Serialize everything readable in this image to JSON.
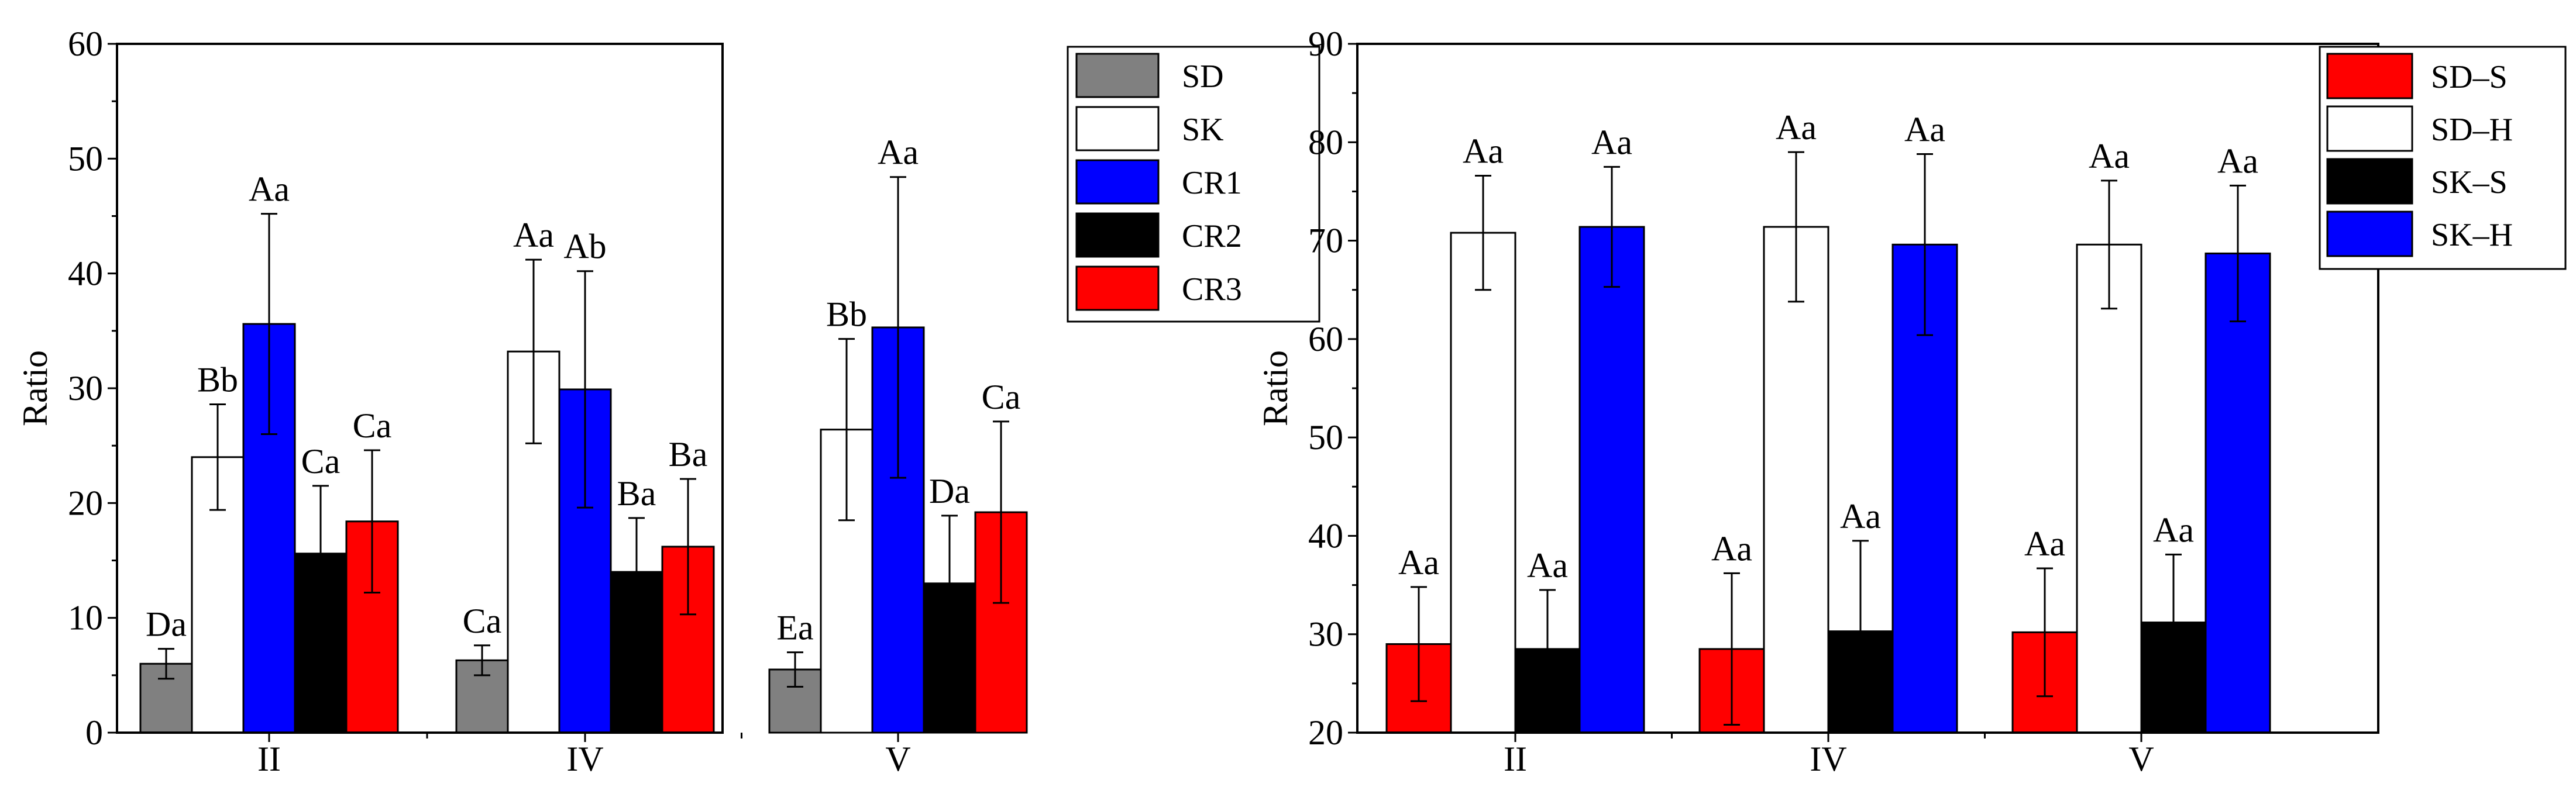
{
  "colors": {
    "SD": "#808080",
    "SK": "#ffffff",
    "CR1": "#0000ff",
    "CR2": "#000000",
    "CR3": "#ff0000",
    "SD–S": "#ff0000",
    "SD–H": "#ffffff",
    "SK–S": "#000000",
    "SK–H": "#0000ff"
  },
  "chart_data": [
    {
      "type": "bar",
      "title": "",
      "xlabel": "",
      "ylabel": "Ratio",
      "ylim": [
        0,
        60
      ],
      "yticks": [
        0,
        10,
        20,
        30,
        40,
        50,
        60
      ],
      "categories": [
        "II",
        "IV",
        "V"
      ],
      "legend_position": "outside-right",
      "series": [
        {
          "name": "SD",
          "values": [
            6.0,
            6.3,
            5.5
          ],
          "errors": [
            1.3,
            1.3,
            1.5
          ],
          "labels": [
            "Da",
            "Ca",
            "Ea"
          ]
        },
        {
          "name": "SK",
          "values": [
            24.0,
            33.2,
            26.4
          ],
          "errors": [
            4.6,
            8.0,
            7.9
          ],
          "labels": [
            "Bb",
            "Aa",
            "Bb"
          ]
        },
        {
          "name": "CR1",
          "values": [
            35.6,
            29.9,
            35.3
          ],
          "errors": [
            9.6,
            10.3,
            13.1
          ],
          "labels": [
            "Aa",
            "Ab",
            "Aa"
          ]
        },
        {
          "name": "CR2",
          "values": [
            15.6,
            14.0,
            13.0
          ],
          "errors": [
            5.9,
            4.7,
            5.9
          ],
          "labels": [
            "Ca",
            "Ba",
            "Da"
          ]
        },
        {
          "name": "CR3",
          "values": [
            18.4,
            16.2,
            19.2
          ],
          "errors": [
            6.2,
            5.9,
            7.9
          ],
          "labels": [
            "Ca",
            "Ba",
            "Ca"
          ]
        }
      ]
    },
    {
      "type": "bar",
      "title": "",
      "xlabel": "",
      "ylabel": "Ratio",
      "ylim": [
        20,
        90
      ],
      "yticks": [
        20,
        30,
        40,
        50,
        60,
        70,
        80,
        90
      ],
      "categories": [
        "II",
        "IV",
        "V"
      ],
      "legend_position": "top-right",
      "series": [
        {
          "name": "SD–S",
          "values": [
            29.0,
            28.5,
            30.2
          ],
          "errors": [
            5.8,
            7.7,
            6.5
          ],
          "labels": [
            "Aa",
            "Aa",
            "Aa"
          ]
        },
        {
          "name": "SD–H",
          "values": [
            70.8,
            71.4,
            69.6
          ],
          "errors": [
            5.8,
            7.6,
            6.5
          ],
          "labels": [
            "Aa",
            "Aa",
            "Aa"
          ]
        },
        {
          "name": "SK–S",
          "values": [
            28.5,
            30.3,
            31.2
          ],
          "errors": [
            6.0,
            9.2,
            6.9
          ],
          "labels": [
            "Aa",
            "Aa",
            "Aa"
          ]
        },
        {
          "name": "SK–H",
          "values": [
            71.4,
            69.6,
            68.7
          ],
          "errors": [
            6.1,
            9.2,
            6.9
          ],
          "labels": [
            "Aa",
            "Aa",
            "Aa"
          ]
        }
      ]
    }
  ]
}
